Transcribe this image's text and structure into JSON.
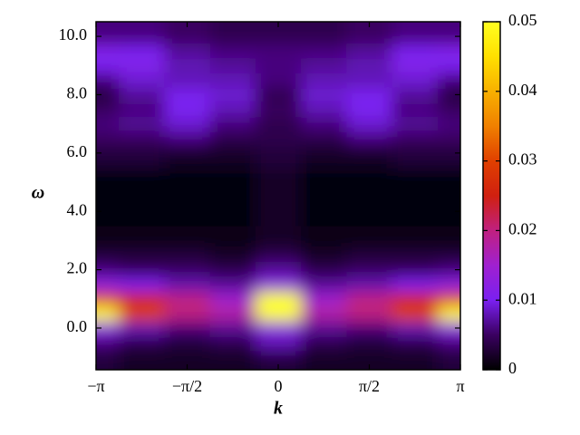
{
  "chart_data": {
    "type": "heatmap",
    "x_label": "k",
    "y_label": "ω",
    "x": [
      -3.14159,
      -2.35619,
      -1.5708,
      -0.7854,
      0,
      0.7854,
      1.5708,
      2.35619,
      3.14159
    ],
    "y": [
      -1,
      -0.5,
      0,
      0.5,
      1,
      1.5,
      2,
      2.5,
      3,
      4,
      5,
      6,
      6.5,
      7,
      7.5,
      8,
      8.5,
      9,
      9.5,
      10
    ],
    "z": [
      [
        0.003,
        0.002,
        0.002,
        0.002,
        0.003,
        0.002,
        0.002,
        0.002,
        0.003
      ],
      [
        0.006,
        0.004,
        0.003,
        0.004,
        0.008,
        0.004,
        0.003,
        0.004,
        0.006
      ],
      [
        0.012,
        0.008,
        0.006,
        0.007,
        0.012,
        0.007,
        0.006,
        0.008,
        0.012
      ],
      [
        0.05,
        0.03,
        0.02,
        0.018,
        0.05,
        0.018,
        0.02,
        0.03,
        0.05
      ],
      [
        0.03,
        0.025,
        0.02,
        0.015,
        0.05,
        0.015,
        0.02,
        0.025,
        0.03
      ],
      [
        0.012,
        0.01,
        0.008,
        0.007,
        0.012,
        0.007,
        0.008,
        0.01,
        0.012
      ],
      [
        0.006,
        0.005,
        0.005,
        0.004,
        0.007,
        0.004,
        0.005,
        0.005,
        0.006
      ],
      [
        0.003,
        0.003,
        0.003,
        0.002,
        0.004,
        0.002,
        0.003,
        0.003,
        0.003
      ],
      [
        0.001,
        0.001,
        0.001,
        0.001,
        0.002,
        0.001,
        0.001,
        0.001,
        0.001
      ],
      [
        0.0005,
        0.0005,
        0.0005,
        0.0005,
        0.002,
        0.0005,
        0.0005,
        0.0005,
        0.0005
      ],
      [
        0.0005,
        0.0005,
        0.0005,
        0.0005,
        0.002,
        0.0005,
        0.0005,
        0.0005,
        0.0005
      ],
      [
        0.003,
        0.003,
        0.002,
        0.002,
        0.003,
        0.002,
        0.002,
        0.003,
        0.003
      ],
      [
        0.005,
        0.005,
        0.006,
        0.004,
        0.004,
        0.004,
        0.006,
        0.005,
        0.005
      ],
      [
        0.006,
        0.007,
        0.009,
        0.006,
        0.004,
        0.006,
        0.009,
        0.007,
        0.006
      ],
      [
        0.005,
        0.006,
        0.01,
        0.008,
        0.005,
        0.008,
        0.01,
        0.006,
        0.005
      ],
      [
        0.003,
        0.007,
        0.01,
        0.009,
        0.004,
        0.009,
        0.01,
        0.007,
        0.003
      ],
      [
        0.006,
        0.009,
        0.008,
        0.008,
        0.006,
        0.008,
        0.008,
        0.009,
        0.006
      ],
      [
        0.01,
        0.011,
        0.008,
        0.007,
        0.006,
        0.007,
        0.008,
        0.011,
        0.01
      ],
      [
        0.011,
        0.01,
        0.007,
        0.006,
        0.006,
        0.006,
        0.007,
        0.01,
        0.011
      ],
      [
        0.006,
        0.006,
        0.005,
        0.004,
        0.004,
        0.004,
        0.005,
        0.006,
        0.006
      ]
    ],
    "xlim": [
      -3.14159,
      3.14159
    ],
    "xticks": [
      {
        "value": -3.14159,
        "label": "−π"
      },
      {
        "value": -1.5708,
        "label": "−π/2"
      },
      {
        "value": 0,
        "label": "0"
      },
      {
        "value": 1.5708,
        "label": "π/2"
      },
      {
        "value": 3.14159,
        "label": "π"
      }
    ],
    "ylim": [
      -1.43,
      10.5
    ],
    "yticks": [
      {
        "value": 0,
        "label": "0.0"
      },
      {
        "value": 2,
        "label": "2.0"
      },
      {
        "value": 4,
        "label": "4.0"
      },
      {
        "value": 6,
        "label": "6.0"
      },
      {
        "value": 8,
        "label": "8.0"
      },
      {
        "value": 10,
        "label": "10.0"
      }
    ],
    "zlim": [
      0,
      0.05
    ],
    "zticks": [
      0,
      0.01,
      0.02,
      0.03,
      0.04,
      0.05
    ],
    "colormap": [
      "#000000",
      "#3a0060",
      "#7a20f0",
      "#a020d0",
      "#c02080",
      "#d02010",
      "#e04000",
      "#f08000",
      "#f8b000",
      "#ffe000",
      "#ffff20"
    ]
  }
}
